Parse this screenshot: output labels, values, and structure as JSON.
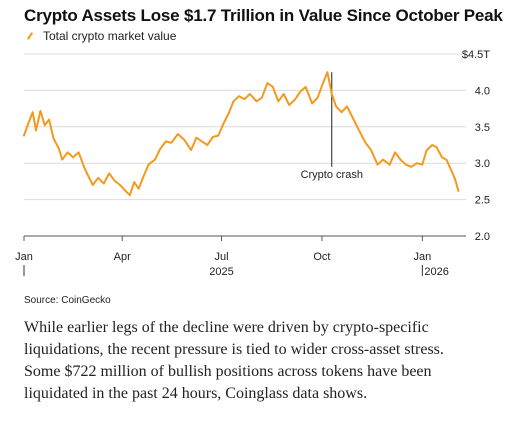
{
  "header": {
    "title": "Crypto Assets Lose $1.7 Trillion in Value Since October Peak"
  },
  "legend": {
    "label": "Total crypto market value"
  },
  "source": "Source: CoinGecko",
  "body": {
    "lines": [
      "While earlier legs of the decline were driven by crypto-specific",
      "liquidations, the recent pressure is tied to wider cross-asset stress.",
      "Some $722 million of bullish positions across tokens have been",
      "liquidated in the past 24 hours, Coinglass data shows."
    ]
  },
  "colors": {
    "line": "#f39a1e",
    "grid": "#dcdcdc",
    "text": "#222222",
    "annotation": "#222222"
  },
  "chart_data": {
    "type": "line",
    "title": "Crypto Assets Lose $1.7 Trillion in Value Since October Peak",
    "series": [
      {
        "name": "Total crypto market value",
        "x": [
          "2025-01-01",
          "2025-01-05",
          "2025-01-09",
          "2025-01-12",
          "2025-01-16",
          "2025-01-20",
          "2025-01-24",
          "2025-01-28",
          "2025-02-02",
          "2025-02-05",
          "2025-02-10",
          "2025-02-15",
          "2025-02-20",
          "2025-02-25",
          "2025-03-01",
          "2025-03-05",
          "2025-03-10",
          "2025-03-15",
          "2025-03-20",
          "2025-03-25",
          "2025-03-30",
          "2025-04-04",
          "2025-04-08",
          "2025-04-12",
          "2025-04-16",
          "2025-04-20",
          "2025-04-25",
          "2025-05-01",
          "2025-05-06",
          "2025-05-11",
          "2025-05-16",
          "2025-05-22",
          "2025-05-28",
          "2025-06-03",
          "2025-06-08",
          "2025-06-13",
          "2025-06-18",
          "2025-06-23",
          "2025-06-28",
          "2025-07-03",
          "2025-07-08",
          "2025-07-12",
          "2025-07-17",
          "2025-07-22",
          "2025-07-27",
          "2025-08-02",
          "2025-08-07",
          "2025-08-12",
          "2025-08-17",
          "2025-08-22",
          "2025-08-27",
          "2025-09-01",
          "2025-09-06",
          "2025-09-11",
          "2025-09-16",
          "2025-09-22",
          "2025-09-27",
          "2025-10-02",
          "2025-10-06",
          "2025-10-10",
          "2025-10-14",
          "2025-10-19",
          "2025-10-24",
          "2025-10-30",
          "2025-11-04",
          "2025-11-10",
          "2025-11-15",
          "2025-11-21",
          "2025-11-26",
          "2025-12-02",
          "2025-12-07",
          "2025-12-12",
          "2025-12-17",
          "2025-12-22",
          "2025-12-27",
          "2026-01-01",
          "2026-01-05",
          "2026-01-10",
          "2026-01-14",
          "2026-01-19",
          "2026-01-23",
          "2026-01-27",
          "2026-01-31",
          "2026-02-03"
        ],
        "y": [
          3.38,
          3.55,
          3.7,
          3.45,
          3.72,
          3.52,
          3.6,
          3.34,
          3.2,
          3.05,
          3.15,
          3.08,
          3.15,
          2.95,
          2.82,
          2.7,
          2.8,
          2.72,
          2.86,
          2.76,
          2.7,
          2.62,
          2.56,
          2.74,
          2.65,
          2.8,
          2.98,
          3.05,
          3.2,
          3.3,
          3.28,
          3.4,
          3.32,
          3.18,
          3.35,
          3.3,
          3.25,
          3.36,
          3.38,
          3.55,
          3.7,
          3.85,
          3.92,
          3.88,
          3.95,
          3.85,
          3.9,
          4.1,
          4.05,
          3.85,
          3.95,
          3.8,
          3.87,
          3.98,
          4.05,
          3.82,
          3.9,
          4.1,
          4.25,
          3.95,
          3.78,
          3.7,
          3.78,
          3.6,
          3.45,
          3.28,
          3.18,
          2.98,
          3.05,
          2.98,
          3.15,
          3.05,
          2.98,
          2.95,
          3.0,
          2.98,
          3.18,
          3.25,
          3.22,
          3.08,
          3.05,
          2.92,
          2.78,
          2.62
        ]
      }
    ],
    "x_tick_labels": [
      "Jan",
      "Apr",
      "Jul",
      "Oct",
      "Jan"
    ],
    "x_tick_values": [
      "2025-01-01",
      "2025-04-01",
      "2025-07-01",
      "2025-10-01",
      "2026-01-01"
    ],
    "year_labels": [
      "2025",
      "2026"
    ],
    "y_ticks": [
      2.0,
      2.5,
      3.0,
      3.5,
      4.0,
      4.5
    ],
    "y_tick_labels": [
      "2.0",
      "2.5",
      "3.0",
      "3.5",
      "4.0",
      "$4.5T"
    ],
    "ylim": [
      2.0,
      4.5
    ],
    "xlim": [
      "2025-01-01",
      "2026-02-10"
    ],
    "grid": true,
    "y_axis_side": "right",
    "annotations": [
      {
        "label": "Crypto crash",
        "x": "2025-10-10"
      }
    ]
  }
}
